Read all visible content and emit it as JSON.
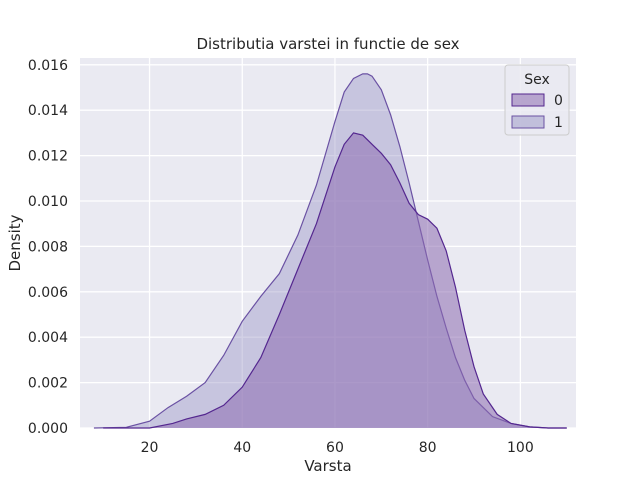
{
  "chart_data": {
    "type": "area",
    "title": "Distributia varstei in functie de sex",
    "xlabel": "Varsta",
    "ylabel": "Density",
    "xlim": [
      5,
      112
    ],
    "ylim": [
      0,
      0.0163
    ],
    "xticks": [
      20,
      40,
      60,
      80,
      100
    ],
    "yticks": [
      0.0,
      0.002,
      0.004,
      0.006,
      0.008,
      0.01,
      0.012,
      0.014,
      0.016
    ],
    "grid": true,
    "legend": {
      "title": "Sex",
      "placement": "top-right"
    },
    "series": [
      {
        "name": "0",
        "fill": "#8c6bb1",
        "line": "#54278f",
        "x": [
          10,
          20,
          25,
          28,
          32,
          36,
          40,
          44,
          48,
          52,
          56,
          60,
          62,
          64,
          66,
          68,
          70,
          72,
          74,
          76,
          78,
          80,
          82,
          84,
          86,
          88,
          90,
          92,
          95,
          98,
          102,
          106,
          110
        ],
        "y": [
          0.0,
          0.0,
          0.0002,
          0.0004,
          0.0006,
          0.001,
          0.0018,
          0.0031,
          0.005,
          0.007,
          0.009,
          0.0115,
          0.0125,
          0.013,
          0.0129,
          0.0125,
          0.0121,
          0.0116,
          0.0108,
          0.0099,
          0.0094,
          0.0092,
          0.0088,
          0.0078,
          0.0062,
          0.0043,
          0.0027,
          0.0015,
          0.0006,
          0.0002,
          5e-05,
          0.0,
          0.0
        ]
      },
      {
        "name": "1",
        "fill": "#9e9ac8",
        "line": "#6a51a3",
        "x": [
          8,
          15,
          20,
          24,
          28,
          32,
          36,
          40,
          44,
          48,
          52,
          56,
          60,
          62,
          64,
          66,
          67,
          68,
          70,
          72,
          74,
          76,
          78,
          80,
          82,
          84,
          86,
          88,
          90,
          94,
          98,
          102,
          106,
          110
        ],
        "y": [
          0.0,
          3e-05,
          0.0003,
          0.0009,
          0.0014,
          0.002,
          0.0032,
          0.0047,
          0.0058,
          0.0068,
          0.0085,
          0.0107,
          0.0135,
          0.0148,
          0.0154,
          0.0156,
          0.0156,
          0.0155,
          0.0149,
          0.0138,
          0.0124,
          0.0108,
          0.0091,
          0.0074,
          0.0058,
          0.0044,
          0.0031,
          0.0021,
          0.0013,
          0.0005,
          0.0002,
          5e-05,
          0.0,
          0.0
        ]
      }
    ]
  },
  "colors": {
    "plot_bg": "#eaeaf2",
    "grid": "#ffffff",
    "legend_bg": "#eaeaf2",
    "legend_border": "#cccccc"
  }
}
